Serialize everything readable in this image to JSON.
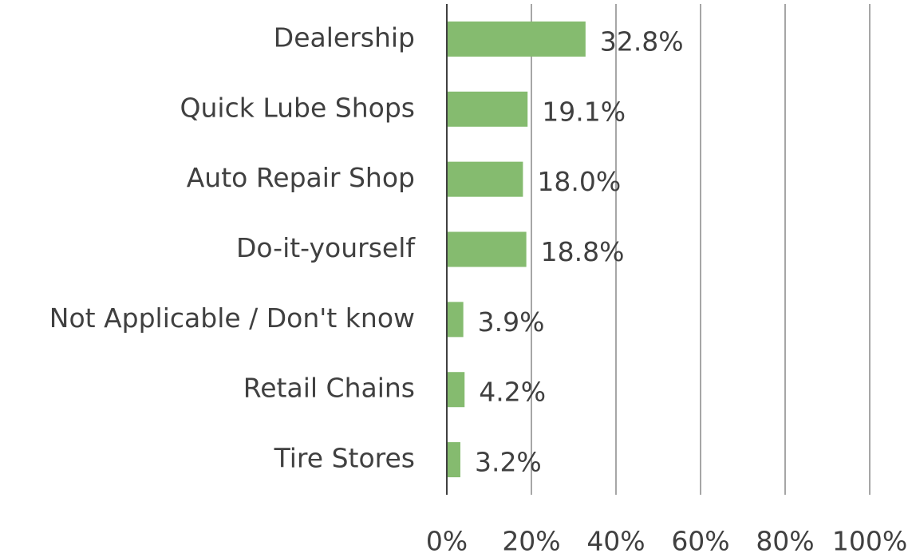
{
  "chart_data": {
    "type": "bar",
    "orientation": "horizontal",
    "categories": [
      "Dealership",
      "Quick Lube Shops",
      "Auto Repair Shop",
      "Do-it-yourself",
      "Not Applicable / Don't know",
      "Retail Chains",
      "Tire Stores"
    ],
    "values": [
      32.8,
      19.1,
      18.0,
      18.8,
      3.9,
      4.2,
      3.2
    ],
    "value_labels": [
      "32.8%",
      "19.1%",
      "18.0%",
      "18.8%",
      "3.9%",
      "4.2%",
      "3.2%"
    ],
    "color": "#85bb6f",
    "xlim": [
      0,
      100
    ],
    "xticks": [
      {
        "value": 0,
        "label": "0%"
      },
      {
        "value": 20,
        "label": "20%"
      },
      {
        "value": 40,
        "label": "40%"
      },
      {
        "value": 60,
        "label": "60%"
      },
      {
        "value": 80,
        "label": "80%"
      },
      {
        "value": 100,
        "label": "100%"
      }
    ],
    "grid": true
  }
}
